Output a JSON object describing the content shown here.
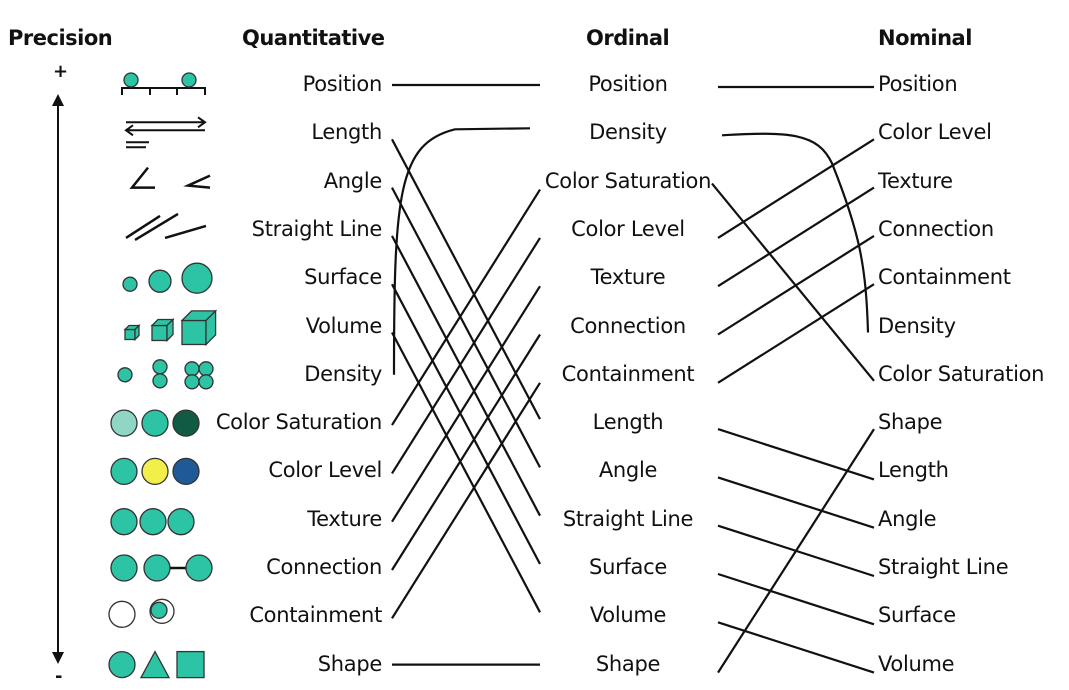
{
  "headers": {
    "precision": "Precision",
    "quantitative": "Quantitative",
    "ordinal": "Ordinal",
    "nominal": "Nominal"
  },
  "axis": {
    "plus": "+",
    "minus": "-"
  },
  "quantitative": [
    "Position",
    "Length",
    "Angle",
    "Straight Line",
    "Surface",
    "Volume",
    "Density",
    "Color Saturation",
    "Color Level",
    "Texture",
    "Connection",
    "Containment",
    "Shape"
  ],
  "ordinal": [
    "Position",
    "Density",
    "Color Saturation",
    "Color Level",
    "Texture",
    "Connection",
    "Containment",
    "Length",
    "Angle",
    "Straight Line",
    "Surface",
    "Volume",
    "Shape"
  ],
  "nominal": [
    "Position",
    "Color Level",
    "Texture",
    "Connection",
    "Containment",
    "Density",
    "Color Saturation",
    "Shape",
    "Length",
    "Angle",
    "Straight Line",
    "Surface",
    "Volume"
  ],
  "icons": [
    "position-icon",
    "length-icon",
    "angle-icon",
    "straight-line-icon",
    "surface-icon",
    "volume-icon",
    "density-icon",
    "color-saturation-icon",
    "color-level-icon",
    "texture-icon",
    "connection-icon",
    "containment-icon",
    "shape-icon"
  ],
  "colors": {
    "teal": "#2cc4a5",
    "lightTeal": "#8fd6c6",
    "darkTeal": "#115b45",
    "yellow": "#f2ef4a",
    "blue": "#1f5a96",
    "line": "#111111"
  }
}
